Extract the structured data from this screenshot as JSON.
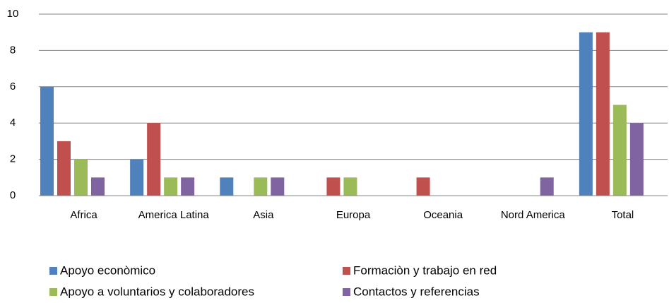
{
  "chart_data": {
    "type": "bar",
    "categories": [
      "Africa",
      "America Latina",
      "Asia",
      "Europa",
      "Oceania",
      "Nord America",
      "Total"
    ],
    "series": [
      {
        "name": "Apoyo econòmico",
        "color": "#4f81bd",
        "values": [
          6,
          2,
          1,
          0,
          0,
          0,
          9
        ]
      },
      {
        "name": "Formaciòn y trabajo en red",
        "color": "#c0504d",
        "values": [
          3,
          4,
          0,
          1,
          1,
          0,
          9
        ]
      },
      {
        "name": "Apoyo a voluntarios y colaboradores",
        "color": "#9bbb59",
        "values": [
          2,
          1,
          1,
          1,
          0,
          0,
          5
        ]
      },
      {
        "name": "Contactos y referencias",
        "color": "#8064a2",
        "values": [
          1,
          1,
          1,
          0,
          0,
          1,
          4
        ]
      }
    ],
    "ylim": [
      0,
      10
    ],
    "yticks": [
      0,
      2,
      4,
      6,
      8,
      10
    ],
    "grid": true,
    "legend": "bottom"
  }
}
